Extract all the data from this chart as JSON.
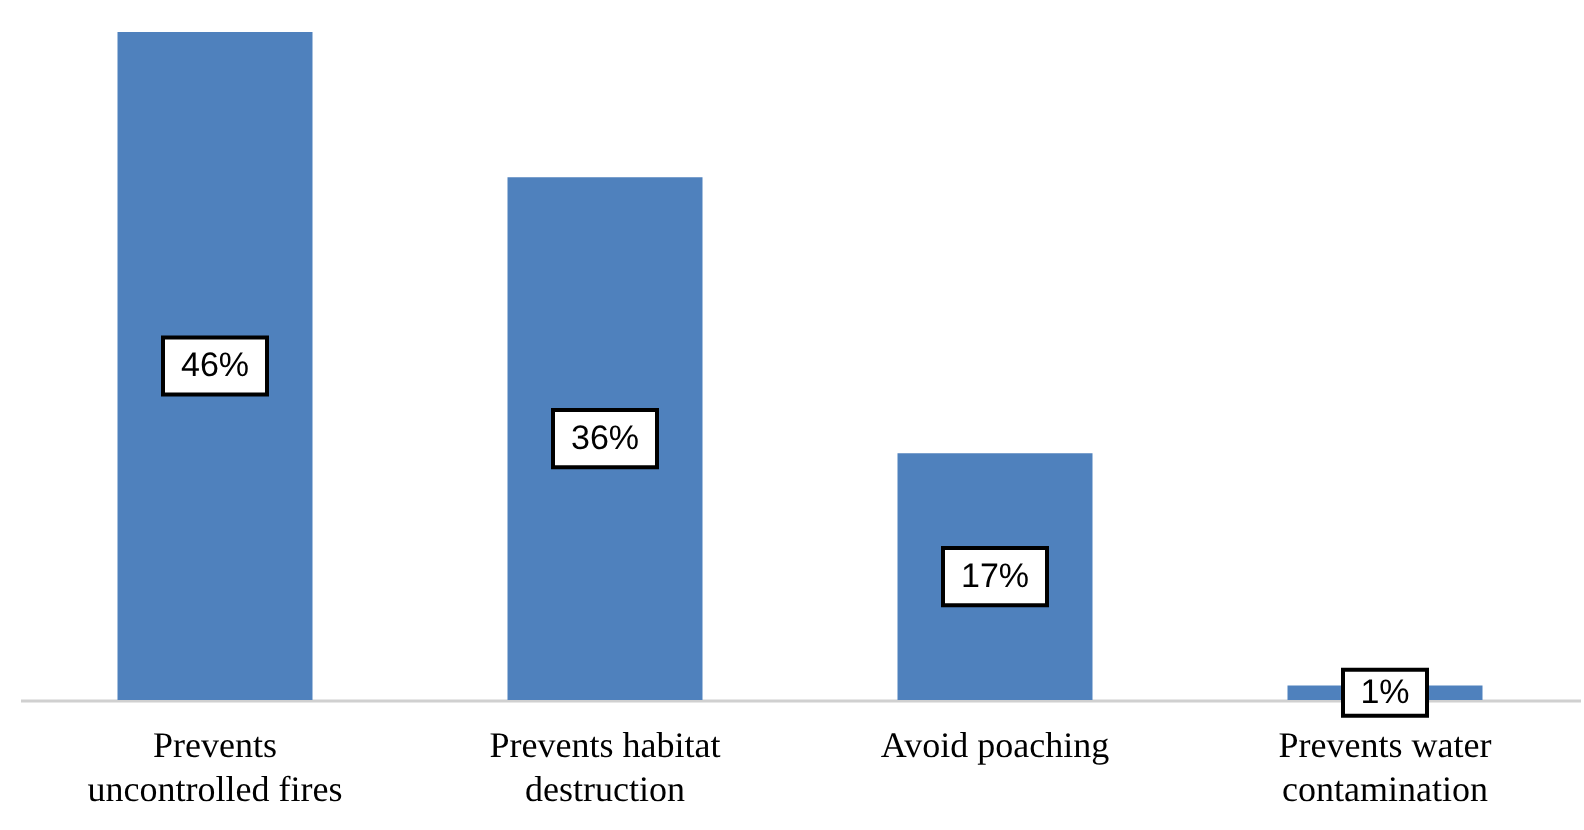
{
  "chart_data": {
    "type": "bar",
    "categories": [
      "Prevents uncontrolled fires",
      "Prevents habitat destruction",
      "Avoid poaching",
      "Prevents water contamination"
    ],
    "values": [
      46,
      36,
      17,
      1
    ],
    "value_labels": [
      "46%",
      "36%",
      "17%",
      "1%"
    ],
    "color": "#4f81bd"
  }
}
